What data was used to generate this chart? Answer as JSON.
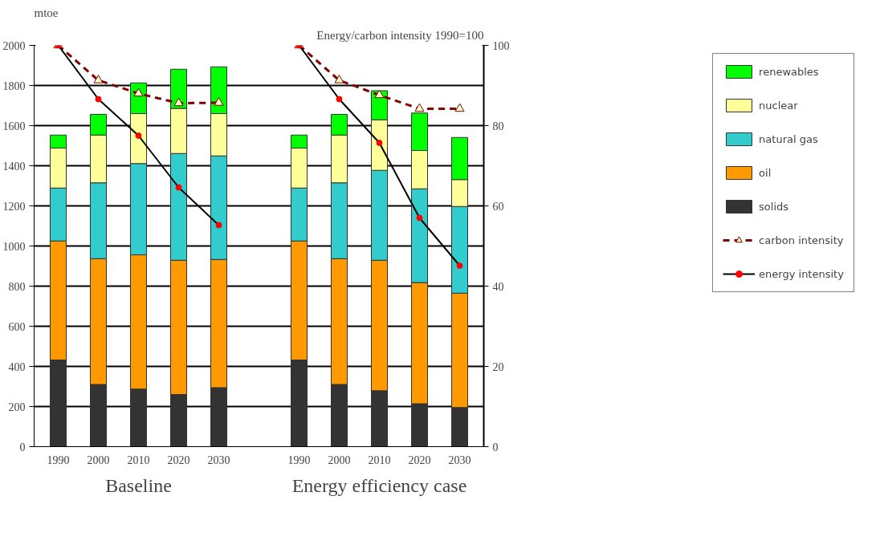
{
  "chart_data": {
    "type": "bar",
    "stacked": true,
    "ylabel": "mtoe",
    "y2label": "Energy/carbon intensity 1990=100",
    "categories": [
      "1990",
      "2000",
      "2010",
      "2020",
      "2030",
      null,
      "1990",
      "2000",
      "2010",
      "2020",
      "2030"
    ],
    "series": [
      {
        "name": "solids",
        "color": "#333333",
        "values": [
          432,
          310,
          287,
          260,
          294,
          null,
          432,
          310,
          279,
          214,
          195
        ]
      },
      {
        "name": "oil",
        "color": "#ff9900",
        "values": [
          593,
          627,
          669,
          669,
          639,
          null,
          593,
          627,
          650,
          604,
          570
        ]
      },
      {
        "name": "natural gas",
        "color": "#33cccc",
        "values": [
          264,
          378,
          455,
          532,
          516,
          null,
          264,
          378,
          448,
          467,
          432
        ]
      },
      {
        "name": "nuclear",
        "color": "#ffff99",
        "values": [
          199,
          238,
          249,
          225,
          211,
          null,
          199,
          238,
          252,
          191,
          134
        ]
      },
      {
        "name": "renewables",
        "color": "#00ff00",
        "values": [
          65,
          103,
          153,
          195,
          233,
          null,
          65,
          103,
          145,
          187,
          210
        ]
      },
      {
        "name": "carbon intensity",
        "type": "line",
        "axis": "y2",
        "color": "#800000",
        "line_style": "dashed",
        "marker": "triangle",
        "values": [
          100,
          91.3,
          88,
          85.6,
          85.7,
          null,
          100,
          91.3,
          87.6,
          84.2,
          84.2
        ]
      },
      {
        "name": "energy intensity",
        "type": "line",
        "axis": "y2",
        "color": "#000000",
        "line_style": "solid",
        "marker": "circle",
        "values": [
          100,
          86.6,
          77.5,
          64.6,
          55.2,
          null,
          100,
          86.6,
          75.7,
          57,
          45.1
        ]
      }
    ],
    "ylim": [
      0,
      2000
    ],
    "yticks": [
      0,
      200,
      400,
      600,
      800,
      1000,
      1200,
      1400,
      1600,
      1800,
      2000
    ],
    "y2lim": [
      0,
      100
    ],
    "y2ticks": [
      0,
      20,
      40,
      60,
      80,
      100
    ],
    "grid": "y",
    "legend": "right",
    "annotations": [
      "Baseline",
      "Energy efficiency case"
    ]
  }
}
